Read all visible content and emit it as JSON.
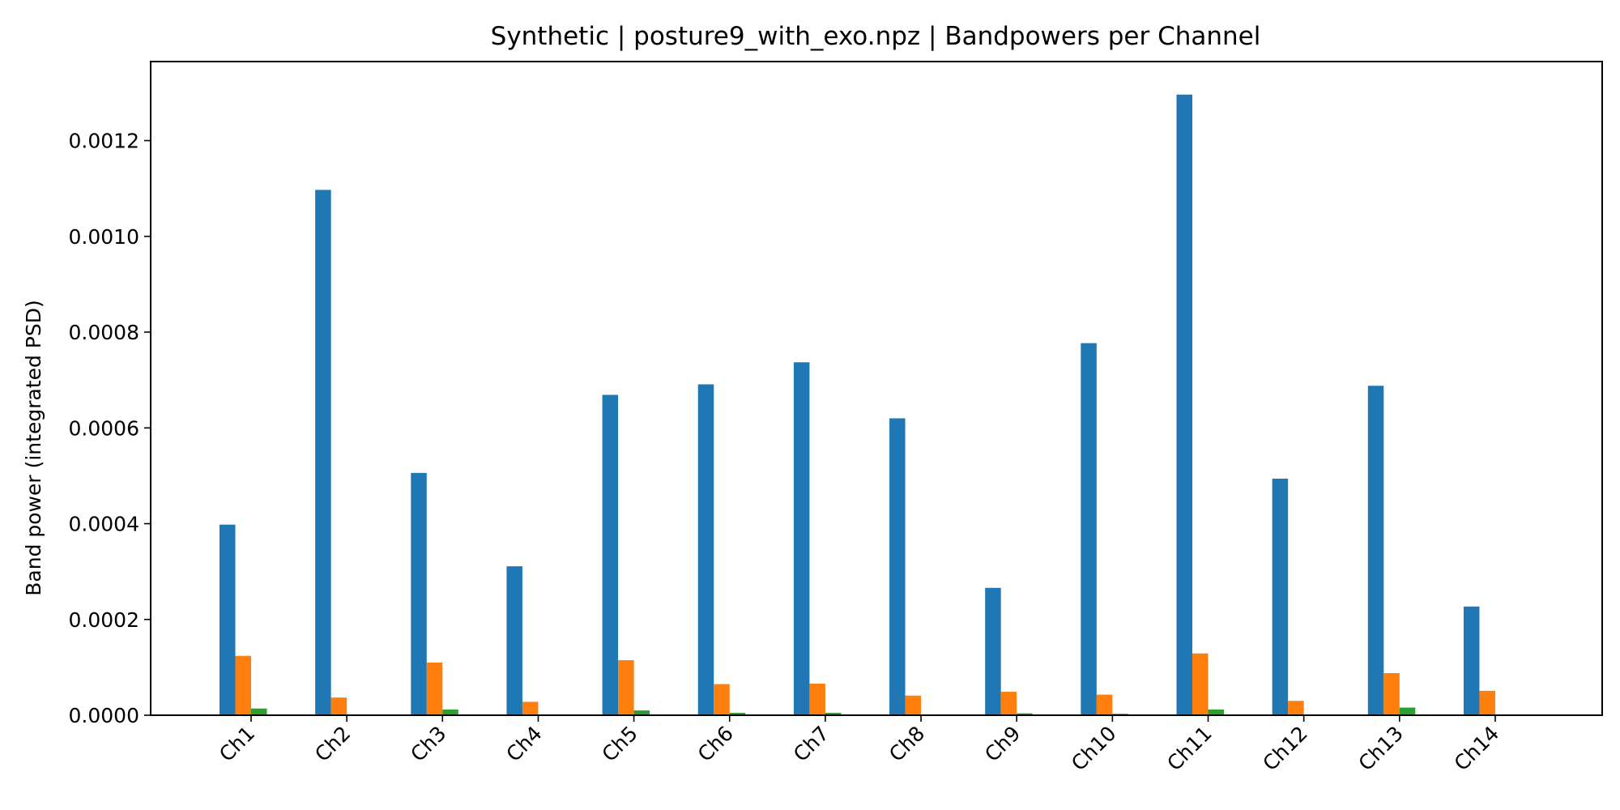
{
  "chart_data": {
    "type": "bar",
    "title": "Synthetic | posture9_with_exo.npz | Bandpowers per Channel",
    "xlabel": "",
    "ylabel": "Band power (integrated PSD)",
    "categories": [
      "Ch1",
      "Ch2",
      "Ch3",
      "Ch4",
      "Ch5",
      "Ch6",
      "Ch7",
      "Ch8",
      "Ch9",
      "Ch10",
      "Ch11",
      "Ch12",
      "Ch13",
      "Ch14"
    ],
    "ylim": [
      0,
      0.001365
    ],
    "yticks": [
      "0.0000",
      "0.0002",
      "0.0004",
      "0.0006",
      "0.0008",
      "0.0010",
      "0.0012"
    ],
    "ytick_values": [
      0,
      0.0002,
      0.0004,
      0.0006,
      0.0008,
      0.001,
      0.0012
    ],
    "grid": false,
    "legend": "none",
    "series": [
      {
        "color": "#1f77b4",
        "values": [
          0.000398,
          0.001097,
          0.000506,
          0.000311,
          0.000669,
          0.000691,
          0.000737,
          0.00062,
          0.000266,
          0.000777,
          0.001296,
          0.000494,
          0.000688,
          0.000227
        ]
      },
      {
        "color": "#ff7f0e",
        "values": [
          0.000124,
          3.7e-05,
          0.00011,
          2.8e-05,
          0.000115,
          6.5e-05,
          6.6e-05,
          4.1e-05,
          4.9e-05,
          4.3e-05,
          0.000129,
          3e-05,
          8.8e-05,
          5.1e-05
        ]
      },
      {
        "color": "#2ca02c",
        "values": [
          1.4e-05,
          1e-06,
          1.2e-05,
          1e-06,
          1e-05,
          5e-06,
          5e-06,
          1e-06,
          4e-06,
          3e-06,
          1.2e-05,
          1e-06,
          1.6e-05,
          1e-06
        ]
      },
      {
        "color": "#d62728",
        "values": [
          1e-06,
          0.0,
          1e-06,
          0.0,
          1e-06,
          0.0,
          0.0,
          0.0,
          0.0,
          0.0,
          1e-06,
          0.0,
          1e-06,
          0.0
        ]
      }
    ]
  }
}
